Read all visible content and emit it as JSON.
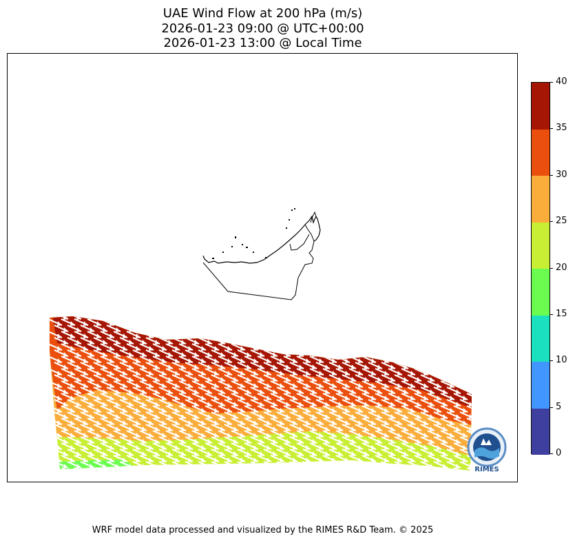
{
  "title": {
    "line1": "UAE Wind Flow at 200 hPa (m/s)",
    "line2": "2026-01-23 09:00 @ UTC+00:00",
    "line3": "2026-01-23 13:00 @ Local Time"
  },
  "colorbar": {
    "min": 0,
    "max": 40,
    "ticks": [
      "0",
      "5",
      "10",
      "15",
      "20",
      "25",
      "30",
      "35",
      "40"
    ],
    "levels": [
      {
        "from": 0,
        "to": 5,
        "color": "#3f3f9f"
      },
      {
        "from": 5,
        "to": 10,
        "color": "#4196ff"
      },
      {
        "from": 10,
        "to": 15,
        "color": "#1be0c0"
      },
      {
        "from": 15,
        "to": 20,
        "color": "#6afd50"
      },
      {
        "from": 20,
        "to": 25,
        "color": "#c8ef34"
      },
      {
        "from": 25,
        "to": 30,
        "color": "#fbad3b"
      },
      {
        "from": 30,
        "to": 35,
        "color": "#ea4f0d"
      },
      {
        "from": 35,
        "to": 40,
        "color": "#a61604"
      }
    ]
  },
  "map": {
    "region": "United Arab Emirates",
    "variable": "wind speed",
    "units": "m/s",
    "pressure_level_hpa": 200,
    "wind_direction": "westerly, slightly north-westerly",
    "colors": {
      "arrow": "#ffffff",
      "outline": "#000000"
    }
  },
  "logo": {
    "text": "RIMES",
    "ring_text": "Regional Integrated Multi-Hazard Early Warning System"
  },
  "footer": "WRF model data processed and visualized by the RIMES R&D Team. © 2025"
}
